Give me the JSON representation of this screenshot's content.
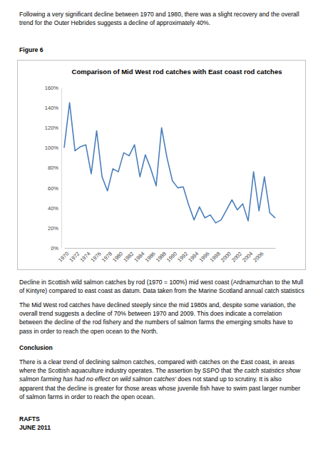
{
  "document": {
    "intro": "Following a very significant decline between 1970 and 1980, there was a slight recovery and the overall trend for the Outer Hebrides suggests a decline of approximately 40%.",
    "figure_label": "Figure 6",
    "caption": "Decline in Scottish wild salmon catches by rod (1970 = 100%) mid west coast (Ardnamurchan to the Mull of Kintyre) compared to east coast as datum. Data taken from the Marine Scotland annual catch statistics",
    "discussion": "The Mid West rod catches have declined steeply since the mid 1980s and, despite some variation, the overall trend suggests a decline of 70% between 1970 and 2009. This does indicate a correlation between the decline of the rod fishery and the numbers of salmon farms the emerging smolts have to pass in order to reach the open ocean to the North.",
    "conclusion_heading": "Conclusion",
    "conclusion": [
      "There is a clear trend of declining salmon catches, compared with catches on the East coast, in areas where the Scottish aquaculture industry operates. The assertion by SSPO that ",
      "'the catch statistics show salmon farming has had no effect on wild salmon catches'",
      " does not stand up to scrutiny. It is also apparent that the decline is greater for those areas whose juvenile fish have to swim past larger number of salmon farms in order to reach the open ocean."
    ],
    "signature": [
      "RAFTS",
      "JUNE 2011"
    ]
  },
  "chart_data": {
    "type": "line",
    "title": "Comparison of Mid West rod catches with East coast rod catches",
    "categories": [
      "1970",
      null,
      "1972",
      null,
      "1974",
      null,
      "1976",
      null,
      "1978",
      null,
      "1980",
      null,
      "1982",
      null,
      "1984",
      null,
      "1986",
      null,
      "1988",
      null,
      "1990",
      null,
      "1992",
      null,
      "1994",
      null,
      "1996",
      null,
      "1998",
      null,
      "2000",
      null,
      "2002",
      null,
      "2004",
      null,
      "2006",
      null,
      null,
      null
    ],
    "values": [
      100,
      145,
      97,
      101,
      103,
      74,
      117,
      71,
      57,
      79,
      76,
      95,
      92,
      103,
      71,
      93,
      79,
      62,
      120,
      90,
      67,
      60,
      61,
      43,
      28,
      41,
      30,
      33,
      25,
      28,
      38,
      48,
      38,
      44,
      27,
      76,
      37,
      71,
      35,
      30
    ],
    "color": "#4a7ebb",
    "ylim": [
      0,
      160
    ],
    "yticks": [
      {
        "value": 0,
        "label": "0%"
      },
      {
        "value": 20,
        "label": "20%"
      },
      {
        "value": 40,
        "label": "40%"
      },
      {
        "value": 60,
        "label": "60%"
      },
      {
        "value": 80,
        "label": "80%"
      },
      {
        "value": 100,
        "label": "100%"
      },
      {
        "value": 120,
        "label": "120%"
      },
      {
        "value": 140,
        "label": "140%"
      },
      {
        "value": 160,
        "label": "160%"
      }
    ],
    "grid": false
  }
}
